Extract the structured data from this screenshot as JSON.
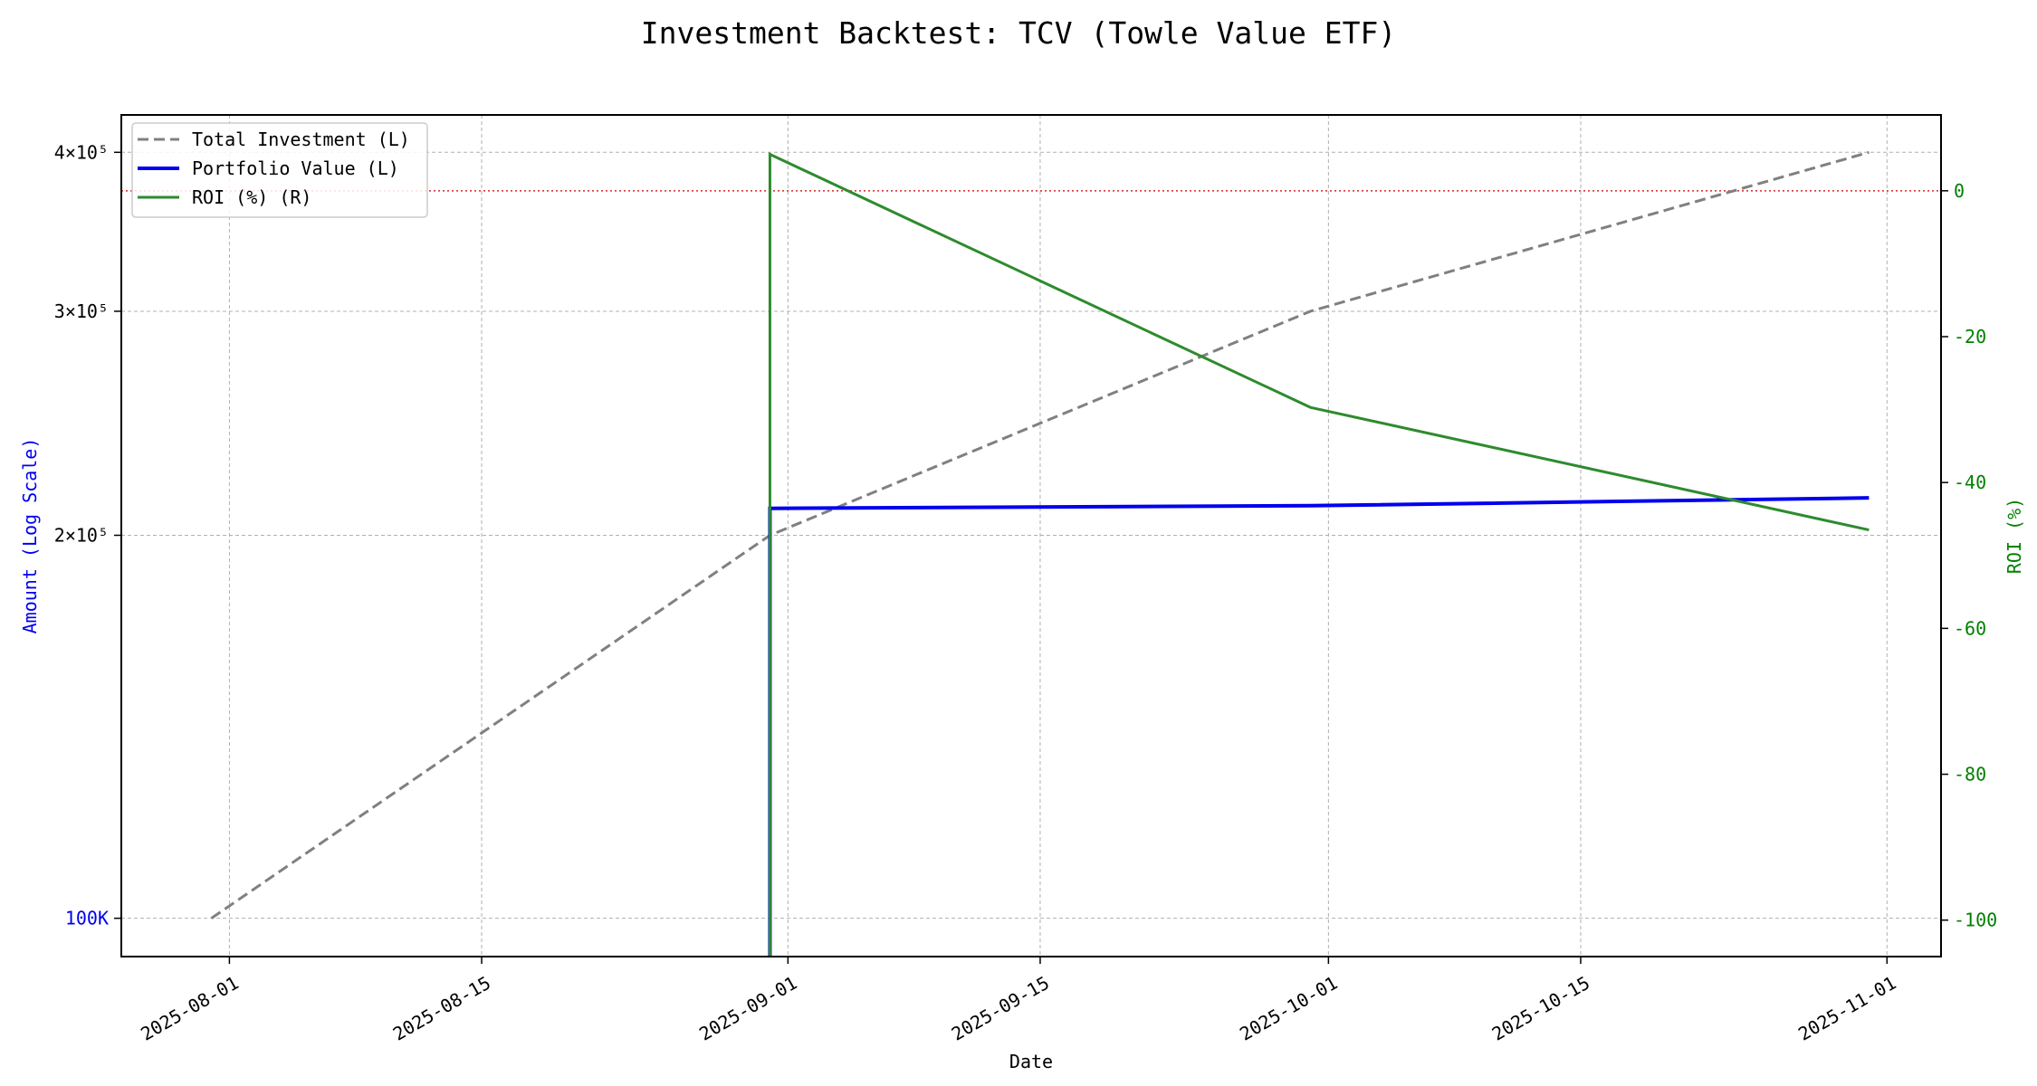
{
  "chart_data": {
    "type": "line",
    "title": "Investment Backtest: TCV (Towle Value ETF)",
    "xlabel": "Date",
    "ylabel_left": "Amount (Log Scale)",
    "ylabel_right": "ROI (%)",
    "x": [
      "2025-07-31",
      "2025-08-31",
      "2025-09-30",
      "2025-10-31"
    ],
    "xlim": [
      "2025-07-26",
      "2025-11-04"
    ],
    "x_ticks": [
      "2025-08-01",
      "2025-08-15",
      "2025-09-01",
      "2025-09-15",
      "2025-10-01",
      "2025-10-15",
      "2025-11-01"
    ],
    "y_left_scale": "log",
    "y_left_lim": [
      93300,
      428000
    ],
    "y_left_ticks": [
      {
        "value": 100000,
        "label": "100K"
      },
      {
        "value": 200000,
        "label": "2×10⁵"
      },
      {
        "value": 300000,
        "label": "3×10⁵"
      },
      {
        "value": 400000,
        "label": "4×10⁵"
      }
    ],
    "y_right_lim": [
      -105,
      10.4
    ],
    "y_right_ticks": [
      0,
      -20,
      -40,
      -60,
      -80,
      -100
    ],
    "reference_line": {
      "axis": "right",
      "value": 0,
      "color": "#d62728",
      "style": "dotted"
    },
    "grid": true,
    "legend_position": "top-left",
    "series": [
      {
        "name": "Total Investment (L)",
        "axis": "left",
        "color": "#808080",
        "style": "dashed",
        "values": [
          100000,
          200000,
          300000,
          400000
        ]
      },
      {
        "name": "Portfolio Value (L)",
        "axis": "left",
        "color": "#0000ee",
        "style": "solid",
        "values": [
          0,
          210000,
          211000,
          214000
        ]
      },
      {
        "name": "ROI (%) (R)",
        "axis": "right",
        "color": "#2e8b2e",
        "style": "solid",
        "values": [
          -100,
          5,
          -29.7,
          -46.5
        ]
      }
    ],
    "colors": {
      "left_axis_label": "#0000ee",
      "right_axis": "#008000"
    }
  }
}
